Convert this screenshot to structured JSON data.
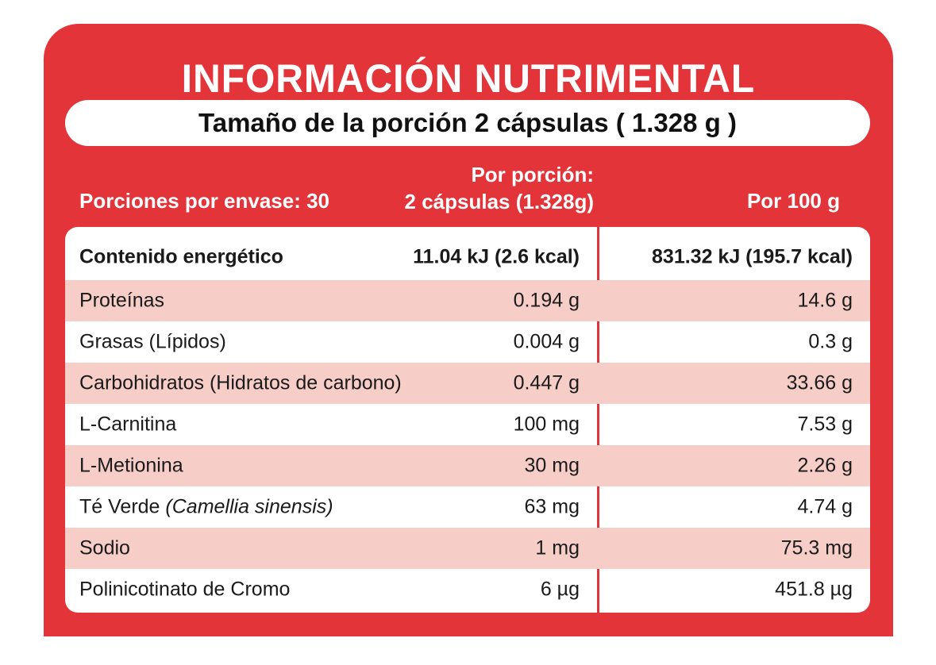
{
  "title": "INFORMACIÓN NUTRIMENTAL",
  "serving_size": "Tamaño de la porción 2 cápsulas ( 1.328 g )",
  "headers": {
    "porciones_envase": "Porciones por envase: 30",
    "por_porcion_line1": "Por porción:",
    "por_porcion_line2": "2 cápsulas (1.328g)",
    "por_100g": "Por 100 g"
  },
  "rows": [
    {
      "name": "Contenido energético",
      "per_serving": "11.04 kJ (2.6 kcal)",
      "per_100g": "831.32 kJ (195.7 kcal)"
    },
    {
      "name": "Proteínas",
      "per_serving": "0.194 g",
      "per_100g": "14.6 g"
    },
    {
      "name": "Grasas (Lípidos)",
      "per_serving": "0.004 g",
      "per_100g": "0.3 g"
    },
    {
      "name": "Carbohidratos (Hidratos de carbono)",
      "per_serving": "0.447 g",
      "per_100g": "33.66 g"
    },
    {
      "name": "L-Carnitina",
      "per_serving": "100 mg",
      "per_100g": "7.53 g"
    },
    {
      "name": "L-Metionina",
      "per_serving": "30 mg",
      "per_100g": "2.26 g"
    },
    {
      "name": "Té Verde",
      "name_italic": "(Camellia sinensis)",
      "per_serving": "63 mg",
      "per_100g": "4.74 g"
    },
    {
      "name": "Sodio",
      "per_serving": "1 mg",
      "per_100g": "75.3 mg"
    },
    {
      "name": "Polinicotinato de Cromo",
      "per_serving": "6 µg",
      "per_100g": "451.8 µg"
    }
  ],
  "colors": {
    "accent": "#e3343a",
    "row_shade": "#f6cdc7"
  }
}
